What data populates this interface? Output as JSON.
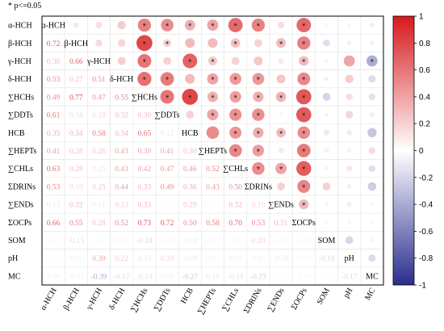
{
  "note": "* p<=0.05",
  "chart_data": {
    "type": "heatmap",
    "variables": [
      "α-HCH",
      "β-HCH",
      "γ-HCH",
      "δ-HCH",
      "∑HCHs",
      "∑DDTs",
      "HCB",
      "∑HEPTs",
      "∑CHLs",
      "ΣDRINs",
      "∑ENDs",
      "ΣOCPs",
      "SOM",
      "pH",
      "MC"
    ],
    "lower_triangle": [
      [],
      [
        0.72
      ],
      [
        0.3,
        0.66
      ],
      [
        0.53,
        0.27,
        0.51
      ],
      [
        0.49,
        0.77,
        0.47,
        0.55
      ],
      [
        0.61,
        0.18,
        0.18,
        0.32,
        0.3
      ],
      [
        0.35,
        0.34,
        0.58,
        0.34,
        0.65,
        0.12
      ],
      [
        0.41,
        0.28,
        0.26,
        0.43,
        0.39,
        0.41,
        0.3
      ],
      [
        0.63,
        0.28,
        0.15,
        0.43,
        0.42,
        0.47,
        0.46,
        0.52
      ],
      [
        0.53,
        0.19,
        0.25,
        0.44,
        0.33,
        0.49,
        0.36,
        0.43,
        0.5
      ],
      [
        0.13,
        0.32,
        0.11,
        0.23,
        0.33,
        0.03,
        0.29,
        0.05,
        0.32,
        0.19
      ],
      [
        0.66,
        0.55,
        0.28,
        0.52,
        0.73,
        0.72,
        0.5,
        0.58,
        0.7,
        0.53,
        0.31
      ],
      [
        -0.03,
        -0.15,
        -0.03,
        -0.06,
        -0.18,
        -0.04,
        -0.08,
        -0.07,
        -0.05,
        0.2,
        -0.04,
        -0.05
      ],
      [
        -0.03,
        -0.07,
        0.39,
        0.22,
        0.15,
        0.18,
        -0.09,
        0.07,
        0.11,
        -0.07,
        -0.08,
        0.05,
        -0.19
      ],
      [
        0.08,
        -0.07,
        -0.39,
        -0.17,
        -0.14,
        0.08,
        -0.27,
        0.15,
        -0.15,
        -0.23,
        0.03,
        -0.04,
        0.03,
        -0.17
      ]
    ],
    "upper_triangle": [
      [],
      [
        0.1
      ],
      [
        0.14,
        0.16
      ],
      [
        0.22,
        0.18,
        0.21
      ],
      [
        0.55,
        0.8,
        0.6,
        0.62
      ],
      [
        0.5,
        0.2,
        0.2,
        0.58,
        0.6
      ],
      [
        0.35,
        0.3,
        0.68,
        0.3,
        0.8,
        0.2
      ],
      [
        0.4,
        0.3,
        0.25,
        0.4,
        0.35,
        0.4,
        0.5
      ],
      [
        0.65,
        0.28,
        0.2,
        0.44,
        0.42,
        0.48,
        0.46,
        0.52
      ],
      [
        0.55,
        0.2,
        0.25,
        0.45,
        0.35,
        0.49,
        0.36,
        0.43,
        0.5
      ],
      [
        0.15,
        0.3,
        0.1,
        0.25,
        0.33,
        0.05,
        0.29,
        0.1,
        0.4,
        0.2
      ],
      [
        0.66,
        0.55,
        0.3,
        0.52,
        0.73,
        0.72,
        0.5,
        0.58,
        0.7,
        0.53,
        0.31
      ],
      [
        -0.05,
        -0.15,
        -0.05,
        -0.06,
        -0.2,
        -0.05,
        -0.1,
        -0.07,
        -0.05,
        0.2,
        -0.05,
        -0.05
      ],
      [
        -0.05,
        -0.07,
        0.39,
        0.22,
        0.15,
        0.18,
        -0.09,
        0.07,
        0.11,
        -0.07,
        -0.08,
        0.05,
        -0.19
      ],
      [
        0.08,
        -0.07,
        -0.39,
        -0.17,
        -0.14,
        0.08,
        -0.27,
        0.15,
        -0.15,
        -0.23,
        0.05,
        -0.04,
        0.05,
        -0.17
      ]
    ],
    "significant_upper": [
      [],
      [],
      [],
      [],
      [
        0,
        1,
        2,
        3
      ],
      [
        0,
        1,
        3,
        4
      ],
      [
        0,
        2,
        4
      ],
      [
        0,
        2,
        3,
        4,
        5
      ],
      [
        0,
        1,
        3,
        4,
        5,
        6,
        7
      ],
      [
        0,
        3,
        4,
        5,
        6,
        7,
        8
      ],
      [
        1,
        4,
        6,
        8
      ],
      [
        0,
        1,
        2,
        3,
        4,
        5,
        6,
        7,
        8,
        9,
        10
      ],
      [],
      [],
      [
        2
      ]
    ],
    "colorbar": {
      "min": -1,
      "max": 1,
      "ticks": [
        1,
        0.8,
        0.6,
        0.4,
        0.2,
        0,
        -0.2,
        -0.4,
        -0.6,
        -0.8,
        -1
      ]
    },
    "colors": {
      "positive": "#d7191c",
      "negative": "#2b2d8f",
      "neutral": "#ffffff"
    }
  }
}
